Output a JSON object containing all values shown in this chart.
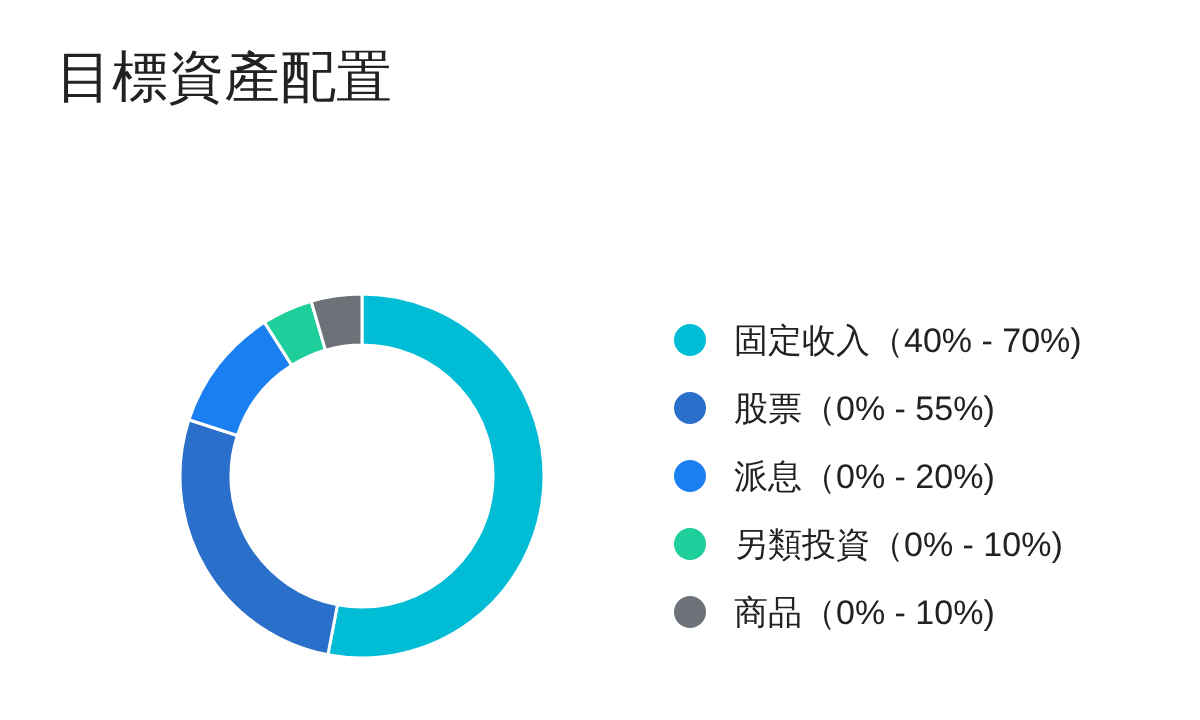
{
  "chart_data": {
    "type": "donut",
    "title": "目標資產配置",
    "categories": [
      "固定收入（40% - 70%)",
      "股票（0% - 55%)",
      "派息（0% - 20%)",
      "另類投資（0% - 10%)",
      "商品（0% - 10%)"
    ],
    "values": [
      53,
      27,
      11,
      4.5,
      4.5
    ],
    "colors": [
      "#00bcd4",
      "#2a6fc9",
      "#1a7ff0",
      "#1ecf9c",
      "#6d7278"
    ],
    "legend": "right"
  }
}
